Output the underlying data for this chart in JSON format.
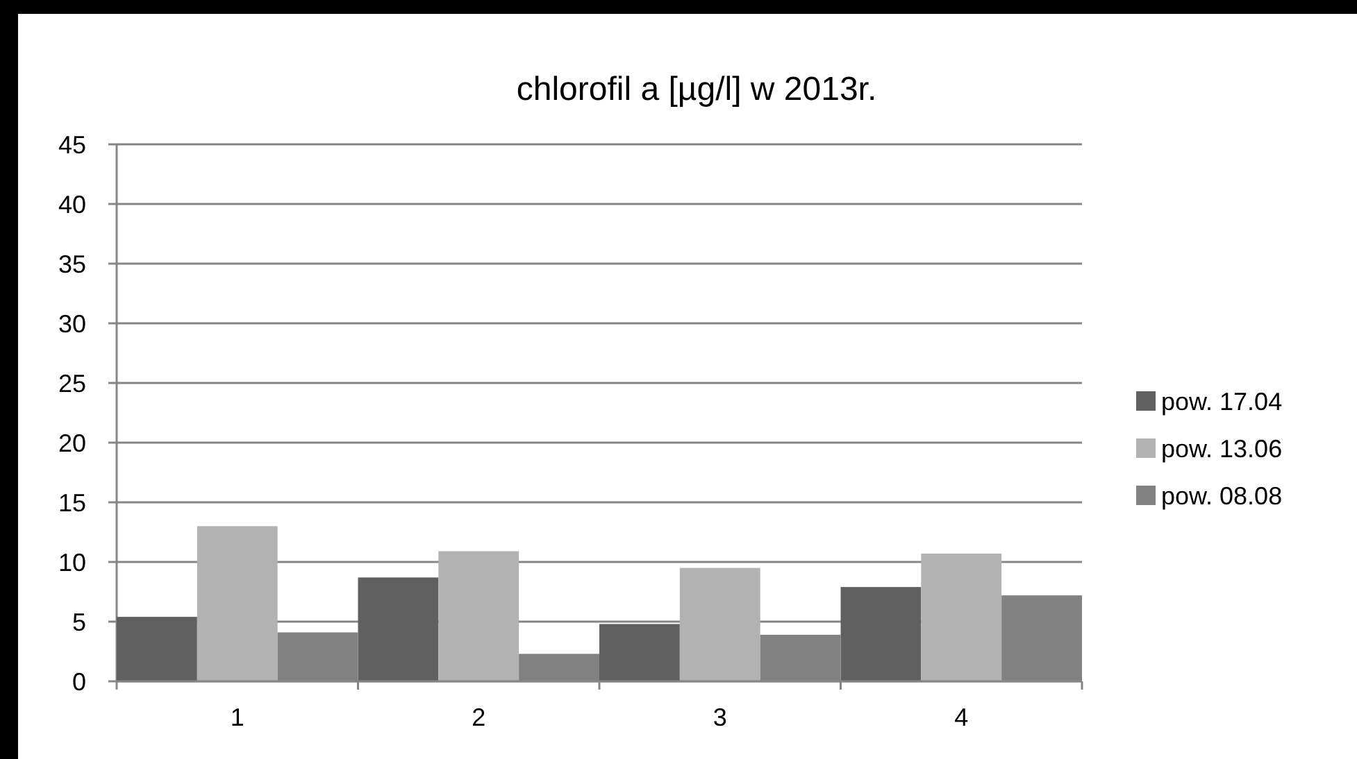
{
  "chart_data": {
    "type": "bar",
    "title": "chlorofil a [µg/l] w 2013r.",
    "categories": [
      "1",
      "2",
      "3",
      "4"
    ],
    "series": [
      {
        "name": "pow. 17.04",
        "color": "#606060",
        "values": [
          5.4,
          8.7,
          4.8,
          7.9
        ]
      },
      {
        "name": "pow. 13.06",
        "color": "#b2b2b2",
        "values": [
          13.0,
          10.9,
          9.5,
          10.7
        ]
      },
      {
        "name": "pow. 08.08",
        "color": "#818181",
        "values": [
          4.1,
          2.3,
          3.9,
          7.2
        ]
      }
    ],
    "ylim": [
      0,
      45
    ],
    "yticks": [
      0,
      5,
      10,
      15,
      20,
      25,
      30,
      35,
      40,
      45
    ],
    "grid": "y",
    "legend": "right"
  }
}
